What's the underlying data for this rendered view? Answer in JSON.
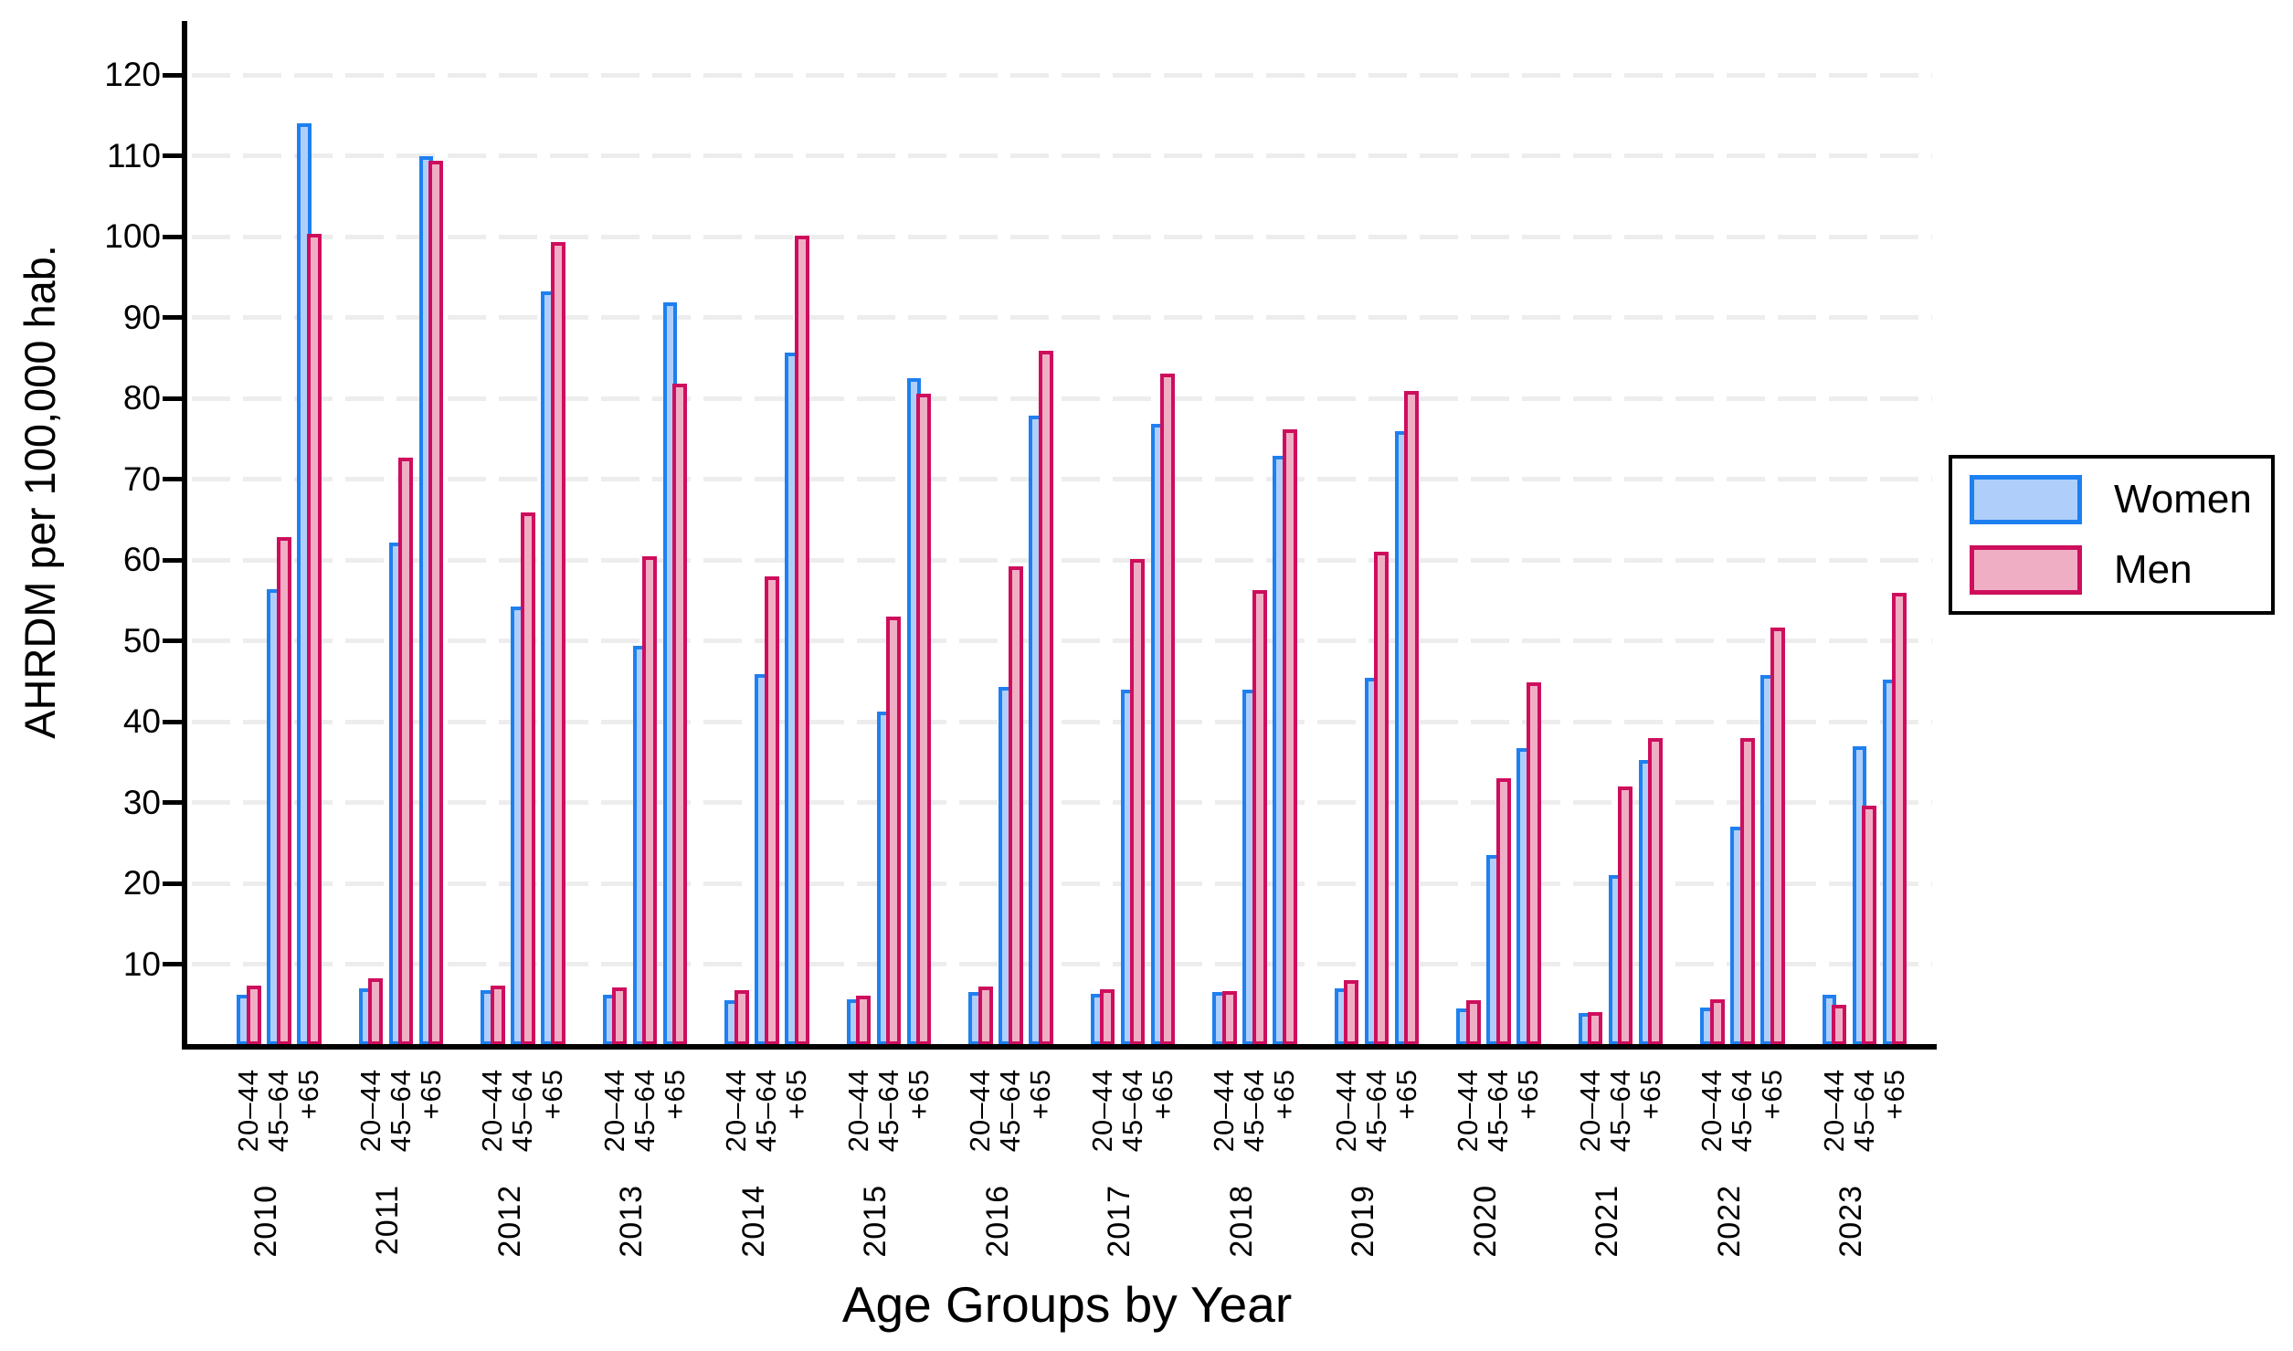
{
  "chart_data": {
    "type": "bar",
    "title": "",
    "xlabel": "Age Groups by Year",
    "ylabel": "AHRDM per 100,000 hab.",
    "ylim": [
      0,
      127
    ],
    "y_ticks": [
      10,
      20,
      30,
      40,
      50,
      60,
      70,
      80,
      90,
      100,
      110,
      120
    ],
    "grid": "dashed horizontal gridlines at each y tick",
    "legend_position": "right, outside plot",
    "years": [
      "2010",
      "2011",
      "2012",
      "2013",
      "2014",
      "2015",
      "2016",
      "2017",
      "2018",
      "2019",
      "2020",
      "2021",
      "2022",
      "2023"
    ],
    "age_groups": [
      "20–44",
      "45–64",
      "+65"
    ],
    "series": [
      {
        "name": "Women",
        "fill_color": "#AFCFFA",
        "border_color": "#1E80F0",
        "values": [
          [
            6.2,
            56.4,
            114.0
          ],
          [
            7.0,
            62.2,
            110.0
          ],
          [
            6.8,
            54.2,
            93.2
          ],
          [
            6.2,
            49.4,
            91.9
          ],
          [
            5.5,
            45.9,
            85.7
          ],
          [
            5.6,
            41.2,
            82.5
          ],
          [
            6.5,
            44.3,
            77.9
          ],
          [
            6.3,
            44.0,
            76.8
          ],
          [
            6.6,
            43.9,
            72.9
          ],
          [
            7.0,
            45.4,
            75.9
          ],
          [
            4.5,
            23.5,
            36.7
          ],
          [
            4.0,
            21.0,
            35.3
          ],
          [
            4.6,
            27.0,
            45.8
          ],
          [
            6.2,
            37.0,
            45.2
          ]
        ]
      },
      {
        "name": "Men",
        "fill_color": "#F0AEC5",
        "border_color": "#CE0E5D",
        "values": [
          [
            7.3,
            62.8,
            100.3
          ],
          [
            8.3,
            72.7,
            109.4
          ],
          [
            7.3,
            65.9,
            99.3
          ],
          [
            7.1,
            60.4,
            81.8
          ],
          [
            6.8,
            58.0,
            100.1
          ],
          [
            6.1,
            53.0,
            80.6
          ],
          [
            7.2,
            59.2,
            85.9
          ],
          [
            6.9,
            60.1,
            83.0
          ],
          [
            6.7,
            56.3,
            76.2
          ],
          [
            8.0,
            61.0,
            80.9
          ],
          [
            5.5,
            33.0,
            44.9
          ],
          [
            4.1,
            32.0,
            38.0
          ],
          [
            5.6,
            38.0,
            51.6
          ],
          [
            5.0,
            29.6,
            55.9
          ]
        ]
      }
    ],
    "colors": {
      "gridline": "#EDEDED",
      "axis": "#000000",
      "background": "#FFFFFF"
    }
  }
}
